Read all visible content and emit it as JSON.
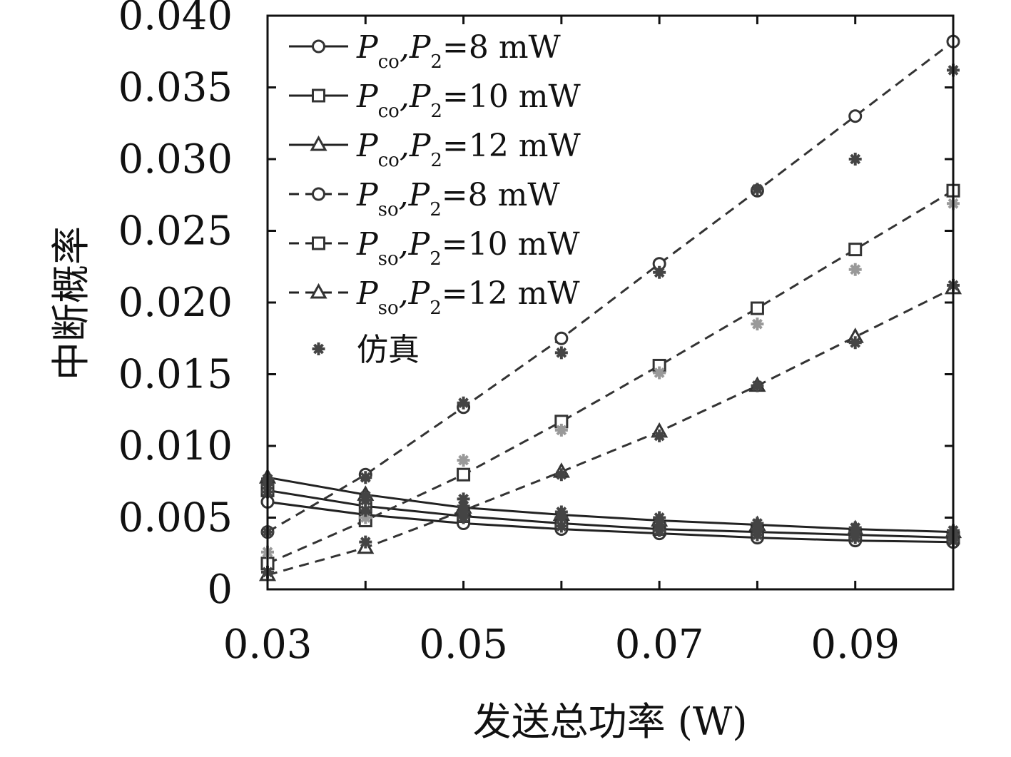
{
  "chart_data": {
    "type": "line",
    "title": "",
    "xlabel": "发送总功率 (W)",
    "ylabel": "中断概率",
    "xlim": [
      0.03,
      0.1
    ],
    "ylim": [
      0,
      0.04
    ],
    "x_ticks": [
      "0.03",
      "0.05",
      "0.07",
      "0.09"
    ],
    "x_tick_values": [
      0.03,
      0.05,
      0.07,
      0.09
    ],
    "y_ticks": [
      "0",
      "0.005",
      "0.010",
      "0.015",
      "0.020",
      "0.025",
      "0.030",
      "0.035",
      "0.040"
    ],
    "y_tick_values": [
      0,
      0.005,
      0.01,
      0.015,
      0.02,
      0.025,
      0.03,
      0.035,
      0.04
    ],
    "grid": false,
    "legend_position": "top-left",
    "x": [
      0.03,
      0.04,
      0.05,
      0.06,
      0.07,
      0.08,
      0.09,
      0.1
    ],
    "series": [
      {
        "name": "P_co,P_2=8 mW",
        "label_main": "P",
        "label_sub": "co",
        "label_rest": ",P",
        "label_sub2": "2",
        "label_tail": "=8 mW",
        "line": "solid",
        "marker": "circle",
        "values": [
          0.0061,
          0.0052,
          0.0046,
          0.0042,
          0.0039,
          0.0036,
          0.0034,
          0.0033
        ]
      },
      {
        "name": "P_co,P_2=10 mW",
        "label_main": "P",
        "label_sub": "co",
        "label_rest": ",P",
        "label_sub2": "2",
        "label_tail": "=10 mW",
        "line": "solid",
        "marker": "square",
        "values": [
          0.0069,
          0.0058,
          0.0051,
          0.0046,
          0.0042,
          0.004,
          0.0038,
          0.0036
        ]
      },
      {
        "name": "P_co,P_2=12 mW",
        "label_main": "P",
        "label_sub": "co",
        "label_rest": ",P",
        "label_sub2": "2",
        "label_tail": "=12 mW",
        "line": "solid",
        "marker": "triangle",
        "values": [
          0.0078,
          0.0066,
          0.0057,
          0.0052,
          0.0048,
          0.0045,
          0.0042,
          0.004
        ]
      },
      {
        "name": "P_so,P_2=8 mW",
        "label_main": "P",
        "label_sub": "so",
        "label_rest": ",P",
        "label_sub2": "2",
        "label_tail": "=8 mW",
        "line": "dashed",
        "marker": "circle",
        "values": [
          0.004,
          0.008,
          0.0127,
          0.0175,
          0.0227,
          0.0278,
          0.033,
          0.0382
        ]
      },
      {
        "name": "P_so,P_2=10 mW",
        "label_main": "P",
        "label_sub": "so",
        "label_rest": ",P",
        "label_sub2": "2",
        "label_tail": "=10 mW",
        "line": "dashed",
        "marker": "square",
        "values": [
          0.0018,
          0.0048,
          0.008,
          0.0117,
          0.0156,
          0.0196,
          0.0237,
          0.0278
        ]
      },
      {
        "name": "P_so,P_2=12 mW",
        "label_main": "P",
        "label_sub": "so",
        "label_rest": ",P",
        "label_sub2": "2",
        "label_tail": "=12 mW",
        "line": "dashed",
        "marker": "triangle",
        "values": [
          0.001,
          0.0029,
          0.0055,
          0.0082,
          0.011,
          0.0142,
          0.0176,
          0.021
        ]
      }
    ],
    "simulation": {
      "name": "仿真",
      "marker": "plus",
      "points": [
        {
          "x": 0.03,
          "y": 0.004
        },
        {
          "x": 0.04,
          "y": 0.0078
        },
        {
          "x": 0.05,
          "y": 0.013
        },
        {
          "x": 0.06,
          "y": 0.0165
        },
        {
          "x": 0.07,
          "y": 0.0221
        },
        {
          "x": 0.08,
          "y": 0.0279
        },
        {
          "x": 0.09,
          "y": 0.03
        },
        {
          "x": 0.1,
          "y": 0.0362
        },
        {
          "x": 0.03,
          "y": 0.0026
        },
        {
          "x": 0.04,
          "y": 0.005
        },
        {
          "x": 0.05,
          "y": 0.009
        },
        {
          "x": 0.06,
          "y": 0.0111
        },
        {
          "x": 0.07,
          "y": 0.0151
        },
        {
          "x": 0.08,
          "y": 0.0185
        },
        {
          "x": 0.09,
          "y": 0.0223
        },
        {
          "x": 0.1,
          "y": 0.0269
        },
        {
          "x": 0.03,
          "y": 0.0012
        },
        {
          "x": 0.04,
          "y": 0.0033
        },
        {
          "x": 0.05,
          "y": 0.0063
        },
        {
          "x": 0.06,
          "y": 0.008
        },
        {
          "x": 0.07,
          "y": 0.0107
        },
        {
          "x": 0.08,
          "y": 0.0142
        },
        {
          "x": 0.09,
          "y": 0.0172
        },
        {
          "x": 0.1,
          "y": 0.0212
        },
        {
          "x": 0.03,
          "y": 0.0068
        },
        {
          "x": 0.04,
          "y": 0.0055
        },
        {
          "x": 0.05,
          "y": 0.005
        },
        {
          "x": 0.06,
          "y": 0.0044
        },
        {
          "x": 0.07,
          "y": 0.0041
        },
        {
          "x": 0.08,
          "y": 0.0038
        },
        {
          "x": 0.09,
          "y": 0.0036
        },
        {
          "x": 0.1,
          "y": 0.0034
        },
        {
          "x": 0.03,
          "y": 0.0073
        },
        {
          "x": 0.04,
          "y": 0.0062
        },
        {
          "x": 0.05,
          "y": 0.0054
        },
        {
          "x": 0.06,
          "y": 0.005
        },
        {
          "x": 0.07,
          "y": 0.0045
        },
        {
          "x": 0.08,
          "y": 0.0042
        },
        {
          "x": 0.09,
          "y": 0.004
        },
        {
          "x": 0.1,
          "y": 0.0038
        },
        {
          "x": 0.03,
          "y": 0.0077
        },
        {
          "x": 0.04,
          "y": 0.0065
        },
        {
          "x": 0.05,
          "y": 0.0058
        },
        {
          "x": 0.06,
          "y": 0.0054
        },
        {
          "x": 0.07,
          "y": 0.005
        },
        {
          "x": 0.08,
          "y": 0.0046
        },
        {
          "x": 0.09,
          "y": 0.0043
        },
        {
          "x": 0.1,
          "y": 0.0041
        }
      ]
    },
    "colors": {
      "solid_line": "#222222",
      "dashed_line": "#333333",
      "marker_stroke": "#333333",
      "sim_dark": "#444444",
      "sim_light": "#999999"
    }
  }
}
